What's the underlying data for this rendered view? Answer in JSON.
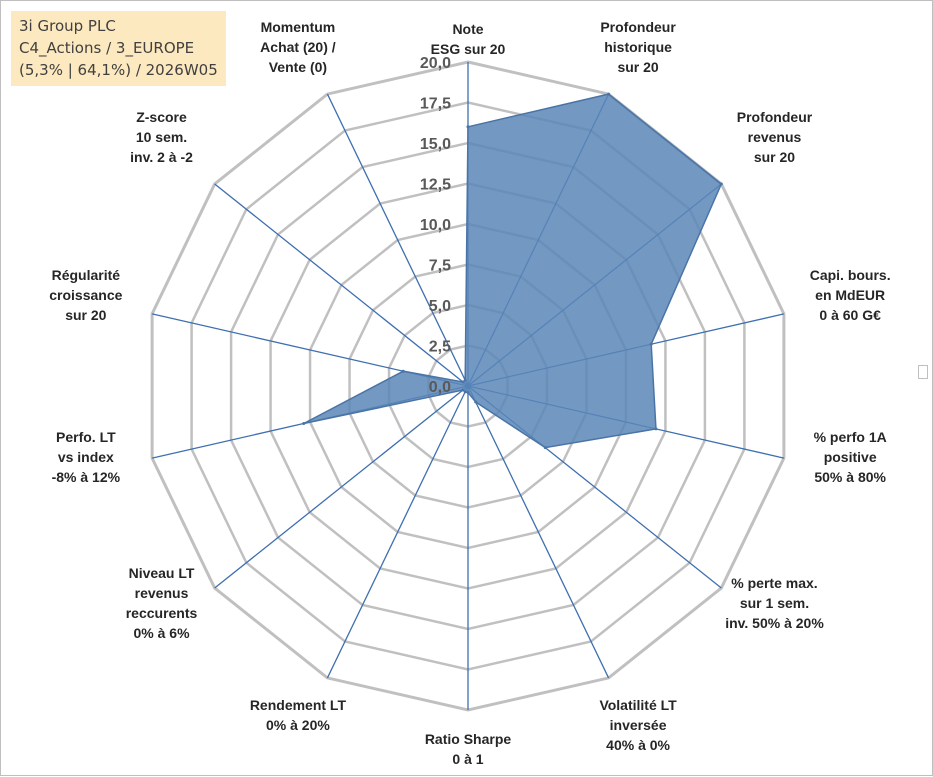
{
  "info": {
    "line1": "3i Group PLC",
    "line2": "C4_Actions / 3_EUROPE",
    "line3": "(5,3% | 64,1%) / 2026W05"
  },
  "colors": {
    "fill": "#5b87b8",
    "stroke": "#4a74a6",
    "grid": "#c0c0c0",
    "spoke": "#3e6fb0"
  },
  "chart_data": {
    "type": "radar",
    "title": "",
    "rmin": 0,
    "rmax": 20,
    "tick_values": [
      0,
      2.5,
      5,
      7.5,
      10,
      12.5,
      15,
      17.5,
      20
    ],
    "tick_labels": [
      "0,0",
      "2,5",
      "5,0",
      "7,5",
      "10,0",
      "12,5",
      "15,0",
      "17,5",
      "20,0"
    ],
    "axes": [
      {
        "label": [
          "Note",
          "ESG sur 20"
        ],
        "value": 16.0
      },
      {
        "label": [
          "Profondeur",
          "historique",
          "sur 20"
        ],
        "value": 20.0
      },
      {
        "label": [
          "Profondeur",
          "revenus",
          "sur 20"
        ],
        "value": 20.0
      },
      {
        "label": [
          "Capi. bours.",
          "en MdEUR",
          "0 à 60 G€"
        ],
        "value": 11.6
      },
      {
        "label": [
          "% perfo 1A",
          "positive",
          "50% à 80%"
        ],
        "value": 11.9
      },
      {
        "label": [
          "% perte max.",
          "sur 1 sem.",
          "inv. 50% à 20%"
        ],
        "value": 6.1
      },
      {
        "label": [
          "Volatilité LT",
          "inversée",
          "40% à 0%"
        ],
        "value": 1.1
      },
      {
        "label": [
          "Ratio Sharpe",
          "0 à 1"
        ],
        "value": 0.4
      },
      {
        "label": [
          "Rendement LT",
          "0% à 20%"
        ],
        "value": 0.4
      },
      {
        "label": [
          "Niveau LT",
          "revenus",
          "reccurents",
          "0% à 6%"
        ],
        "value": 0.4
      },
      {
        "label": [
          "Perfo. LT",
          "vs index",
          "-8% à 12%"
        ],
        "value": 10.4
      },
      {
        "label": [
          "Régularité",
          "croissance",
          "sur 20"
        ],
        "value": 4.1
      },
      {
        "label": [
          "Z-score",
          "10 sem.",
          "inv. 2 à -2"
        ],
        "value": 0.4
      },
      {
        "label": [
          "Momentum",
          "Achat (20) /",
          "Vente (0)"
        ],
        "value": 0.4
      }
    ]
  }
}
